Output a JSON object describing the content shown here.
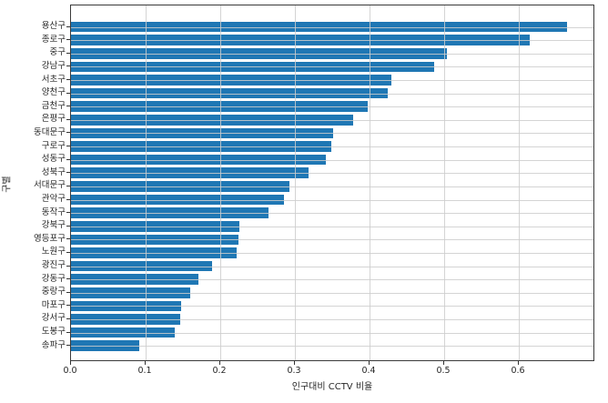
{
  "chart_data": {
    "type": "bar",
    "orientation": "horizontal",
    "title": "",
    "xlabel": "인구대비 CCTV 비율",
    "ylabel": "구별",
    "categories": [
      "용산구",
      "종로구",
      "중구",
      "강남구",
      "서초구",
      "양천구",
      "금천구",
      "은평구",
      "동대문구",
      "구로구",
      "성동구",
      "성북구",
      "서대문구",
      "관악구",
      "동작구",
      "강북구",
      "영등포구",
      "노원구",
      "광진구",
      "강동구",
      "중랑구",
      "마포구",
      "강서구",
      "도봉구",
      "송파구"
    ],
    "values": [
      0.665,
      0.615,
      0.504,
      0.487,
      0.429,
      0.424,
      0.397,
      0.378,
      0.351,
      0.349,
      0.341,
      0.318,
      0.293,
      0.285,
      0.265,
      0.225,
      0.224,
      0.222,
      0.189,
      0.171,
      0.16,
      0.148,
      0.146,
      0.139,
      0.092
    ],
    "xlim": [
      0,
      0.7
    ],
    "xticks": [
      0.0,
      0.1,
      0.2,
      0.3,
      0.4,
      0.5,
      0.6
    ],
    "xtick_labels": [
      "0.0",
      "0.1",
      "0.2",
      "0.3",
      "0.4",
      "0.5",
      "0.6"
    ],
    "grid": true,
    "legend": null,
    "bar_color": "#1f77b4",
    "grid_color": "#cdcdcd",
    "spine_color": "#3a3a3a",
    "text_color": "#262626",
    "background_color": "#ffffff"
  }
}
